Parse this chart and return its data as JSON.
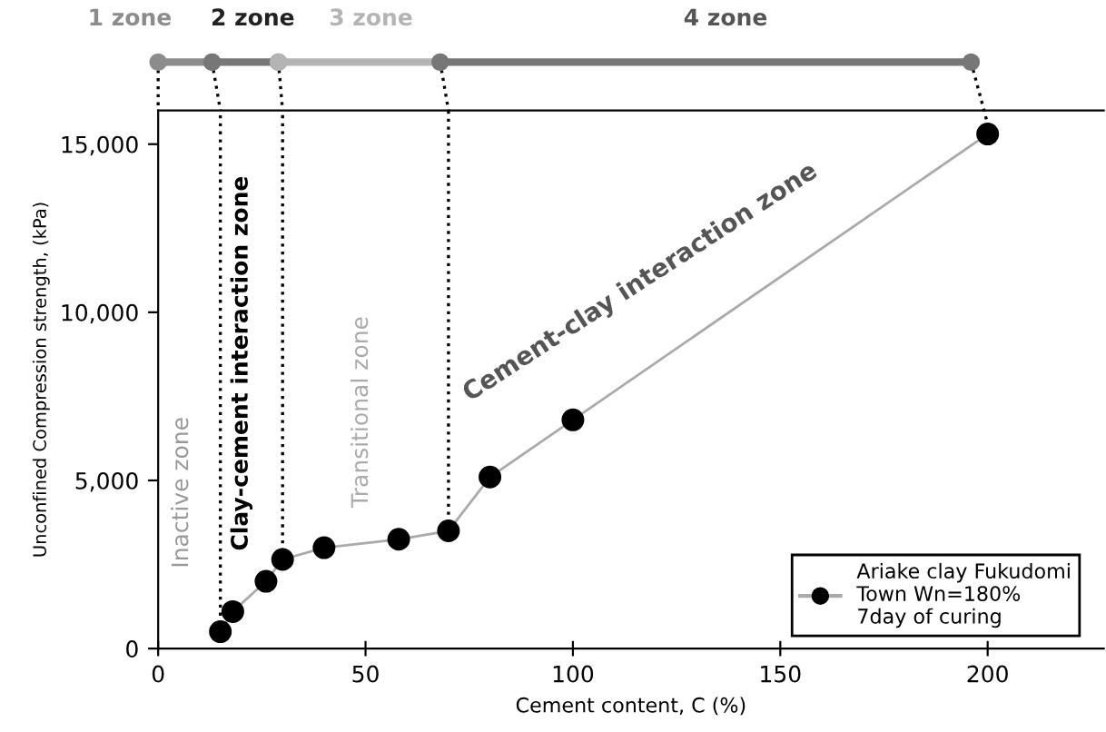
{
  "chart_data": {
    "type": "line",
    "xlabel": "Cement content, C (%)",
    "ylabel": "Unconfined Compression strength, (kPa)",
    "series": [
      {
        "name": "Ariake clay Fukudomi\nTown Wn=180%\n7day of curing",
        "color": "#000000",
        "x": [
          15,
          18,
          26,
          30,
          40,
          58,
          70,
          80,
          100,
          200
        ],
        "values": [
          500,
          1100,
          2000,
          2650,
          3000,
          3250,
          3500,
          5100,
          6800,
          15300
        ]
      }
    ],
    "marker": "circle",
    "line_style": "solid",
    "xlim": [
      0,
      228
    ],
    "xticks": [
      0,
      50,
      100,
      150,
      200
    ],
    "ylim": [
      0,
      16000
    ],
    "yticks": [
      0,
      {
        "value": 5000,
        "label": "5,000"
      },
      {
        "value": 10000,
        "label": "10,000"
      },
      {
        "value": 15000,
        "label": "15,000"
      }
    ],
    "ref_lines": [
      {
        "axis": "x",
        "value": 15,
        "line_style": "dotted",
        "color": "#000000"
      },
      {
        "axis": "x",
        "value": 30,
        "line_style": "dotted",
        "color": "#000000"
      },
      {
        "axis": "x",
        "value": 70,
        "line_style": "dotted",
        "color": "#000000"
      }
    ],
    "annotations": [
      "1 zone",
      "2 zone",
      "3 zone",
      "4 zone",
      "Inactive zone",
      "Clay-cement interaction zone",
      "Transitional zone",
      "Cement-clay interaction zone"
    ],
    "legend": "bottom right",
    "grid": false
  }
}
